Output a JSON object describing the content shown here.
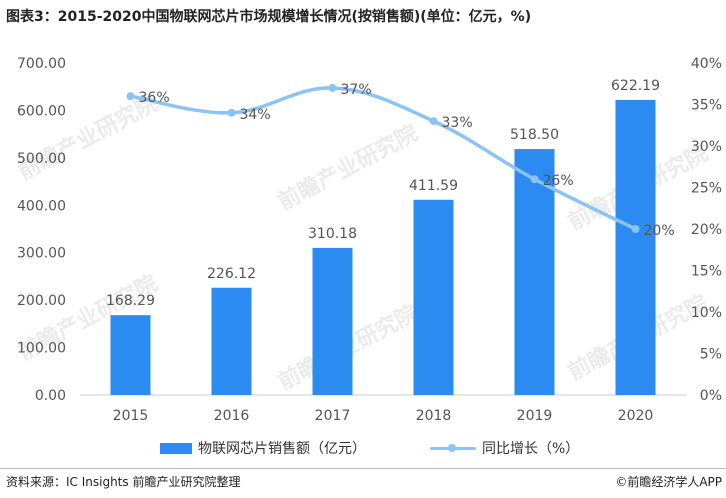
{
  "title": "图表3：2015-2020中国物联网芯片市场规模增长情况(按销售额)(单位：亿元，%)",
  "watermark": "前瞻产业研究院",
  "source": "资料来源：IC Insights 前瞻产业研究院整理",
  "brand": "©前瞻经济学人APP",
  "colors": {
    "bar": "#2b8bf0",
    "line": "#8cc3f5",
    "axis": "#cccccc",
    "text": "#555555"
  },
  "chart_data": {
    "type": "bar",
    "categories": [
      "2015",
      "2016",
      "2017",
      "2018",
      "2019",
      "2020"
    ],
    "series": [
      {
        "name": "物联网芯片销售额（亿元）",
        "type": "bar",
        "axis": "left",
        "values": [
          168.29,
          226.12,
          310.18,
          411.59,
          518.5,
          622.19
        ],
        "labels": [
          "168.29",
          "226.12",
          "310.18",
          "411.59",
          "518.50",
          "622.19"
        ]
      },
      {
        "name": "同比增长（%）",
        "type": "line",
        "axis": "right",
        "values": [
          36,
          34,
          37,
          33,
          26,
          20
        ],
        "labels": [
          "36%",
          "34%",
          "37%",
          "33%",
          "26%",
          "20%"
        ]
      }
    ],
    "y_left": {
      "min": 0,
      "max": 700,
      "step": 100,
      "ticks": [
        "0.00",
        "100.00",
        "200.00",
        "300.00",
        "400.00",
        "500.00",
        "600.00",
        "700.00"
      ]
    },
    "y_right": {
      "min": 0,
      "max": 40,
      "step": 5,
      "ticks": [
        "0%",
        "5%",
        "10%",
        "15%",
        "20%",
        "25%",
        "30%",
        "35%",
        "40%"
      ]
    },
    "grid": false,
    "legend": "bottom"
  }
}
